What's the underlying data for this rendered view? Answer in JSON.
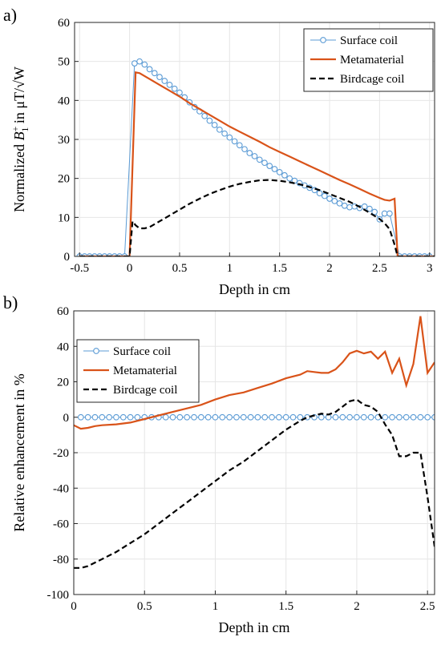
{
  "chart_data": [
    {
      "panel": "a)",
      "type": "line",
      "xlabel": "Depth in cm",
      "ylabel_prefix": "Normalized ",
      "ylabel_symbol": "B",
      "ylabel_sup": "+",
      "ylabel_sub": "1",
      "ylabel_suffix": " in μT/√W",
      "xlim": [
        -0.55,
        3.05
      ],
      "ylim": [
        0,
        60
      ],
      "xticks": [
        -0.5,
        0,
        0.5,
        1,
        1.5,
        2,
        2.5,
        3
      ],
      "xtick_labels": [
        "-0.5",
        "0",
        "0.5",
        "1",
        "1.5",
        "2",
        "2.5",
        "3"
      ],
      "yticks": [
        0,
        10,
        20,
        30,
        40,
        50,
        60
      ],
      "ytick_labels": [
        "0",
        "10",
        "20",
        "30",
        "40",
        "50",
        "60"
      ],
      "grid": true,
      "legend_position": "top-right",
      "series": [
        {
          "name": "Surface coil",
          "style": "circle-markers",
          "color": "#5b9bd5",
          "x": [
            -0.5,
            -0.45,
            -0.4,
            -0.35,
            -0.3,
            -0.25,
            -0.2,
            -0.15,
            -0.1,
            -0.05,
            0.05,
            0.1,
            0.15,
            0.2,
            0.25,
            0.3,
            0.35,
            0.4,
            0.45,
            0.5,
            0.55,
            0.6,
            0.65,
            0.7,
            0.75,
            0.8,
            0.85,
            0.9,
            0.95,
            1.0,
            1.05,
            1.1,
            1.15,
            1.2,
            1.25,
            1.3,
            1.35,
            1.4,
            1.45,
            1.5,
            1.55,
            1.6,
            1.65,
            1.7,
            1.75,
            1.8,
            1.85,
            1.9,
            1.95,
            2.0,
            2.05,
            2.1,
            2.15,
            2.2,
            2.25,
            2.3,
            2.35,
            2.4,
            2.45,
            2.5,
            2.55,
            2.6,
            2.7,
            2.75,
            2.8,
            2.85,
            2.9,
            2.95,
            3.0
          ],
          "y": [
            0,
            0,
            0,
            0,
            0,
            0,
            0,
            0,
            0,
            0,
            49.5,
            50,
            49.2,
            48,
            47,
            46,
            45,
            44,
            43,
            42,
            40.8,
            39.5,
            38.3,
            37.2,
            36,
            34.8,
            33.7,
            32.5,
            31.5,
            30.5,
            29.5,
            28.5,
            27.5,
            26.5,
            25.7,
            24.8,
            24,
            23.2,
            22.4,
            21.6,
            20.8,
            20,
            19.4,
            18.8,
            18.2,
            17.6,
            17,
            16.2,
            15.5,
            14.8,
            14.2,
            13.6,
            13,
            12.6,
            12.8,
            12.4,
            12.8,
            12.2,
            11.4,
            9.5,
            11,
            11,
            0,
            0,
            0,
            0,
            0,
            0,
            0
          ]
        },
        {
          "name": "Metamaterial",
          "style": "solid",
          "color": "#d95319",
          "x": [
            -0.5,
            0.0,
            0.06,
            0.1,
            0.2,
            0.3,
            0.4,
            0.5,
            0.6,
            0.7,
            0.8,
            0.9,
            1.0,
            1.1,
            1.2,
            1.3,
            1.4,
            1.5,
            1.6,
            1.7,
            1.8,
            1.9,
            2.0,
            2.1,
            2.2,
            2.3,
            2.4,
            2.5,
            2.55,
            2.6,
            2.65,
            2.68,
            3.05
          ],
          "y": [
            0,
            0,
            47.2,
            47,
            45.5,
            44,
            42.5,
            41,
            39.3,
            37.8,
            36.3,
            34.8,
            33.3,
            32,
            30.7,
            29.4,
            28,
            26.8,
            25.6,
            24.4,
            23.2,
            22,
            20.8,
            19.6,
            18.5,
            17.3,
            16.1,
            15,
            14.5,
            14.3,
            14.8,
            0,
            0
          ]
        },
        {
          "name": "Birdcage coil",
          "style": "dashed",
          "color": "#000000",
          "x": [
            -0.5,
            0.0,
            0.03,
            0.06,
            0.1,
            0.15,
            0.2,
            0.3,
            0.4,
            0.5,
            0.6,
            0.7,
            0.8,
            0.9,
            1.0,
            1.1,
            1.2,
            1.3,
            1.4,
            1.5,
            1.6,
            1.7,
            1.8,
            1.9,
            2.0,
            2.1,
            2.2,
            2.3,
            2.4,
            2.5,
            2.55,
            2.6,
            2.65,
            2.68,
            3.05
          ],
          "y": [
            0,
            0,
            9,
            8,
            7.2,
            7.2,
            7.5,
            9,
            10.5,
            12,
            13.5,
            14.8,
            16,
            17,
            17.9,
            18.6,
            19.1,
            19.5,
            19.6,
            19.4,
            19,
            18.5,
            17.8,
            17,
            16,
            15,
            14,
            12.7,
            11.2,
            9.6,
            8.5,
            7,
            3,
            0,
            0
          ]
        }
      ]
    },
    {
      "panel": "b)",
      "type": "line",
      "xlabel": "Depth in cm",
      "ylabel": "Relative enhancement in %",
      "xlim": [
        0,
        2.55
      ],
      "ylim": [
        -100,
        60
      ],
      "xticks": [
        0,
        0.5,
        1,
        1.5,
        2,
        2.5
      ],
      "xtick_labels": [
        "0",
        "0.5",
        "1",
        "1.5",
        "2",
        "2.5"
      ],
      "yticks": [
        -100,
        -80,
        -60,
        -40,
        -20,
        0,
        20,
        40,
        60
      ],
      "ytick_labels": [
        "-100",
        "-80",
        "-60",
        "-40",
        "-20",
        "0",
        "20",
        "40",
        "60"
      ],
      "grid": true,
      "legend_position": "top-left",
      "series": [
        {
          "name": "Surface coil",
          "style": "circle-markers",
          "color": "#5b9bd5",
          "x": [
            0.05,
            0.1,
            0.15,
            0.2,
            0.25,
            0.3,
            0.35,
            0.4,
            0.45,
            0.5,
            0.55,
            0.6,
            0.65,
            0.7,
            0.75,
            0.8,
            0.85,
            0.9,
            0.95,
            1.0,
            1.05,
            1.1,
            1.15,
            1.2,
            1.25,
            1.3,
            1.35,
            1.4,
            1.45,
            1.5,
            1.55,
            1.6,
            1.65,
            1.7,
            1.75,
            1.8,
            1.85,
            1.9,
            1.95,
            2.0,
            2.05,
            2.1,
            2.15,
            2.2,
            2.25,
            2.3,
            2.35,
            2.4,
            2.45,
            2.5,
            2.55
          ],
          "y": [
            0,
            0,
            0,
            0,
            0,
            0,
            0,
            0,
            0,
            0,
            0,
            0,
            0,
            0,
            0,
            0,
            0,
            0,
            0,
            0,
            0,
            0,
            0,
            0,
            0,
            0,
            0,
            0,
            0,
            0,
            0,
            0,
            0,
            0,
            0,
            0,
            0,
            0,
            0,
            0,
            0,
            0,
            0,
            0,
            0,
            0,
            0,
            0,
            0,
            0,
            0
          ]
        },
        {
          "name": "Metamaterial",
          "style": "solid",
          "color": "#d95319",
          "x": [
            0,
            0.05,
            0.1,
            0.15,
            0.2,
            0.3,
            0.4,
            0.5,
            0.6,
            0.7,
            0.8,
            0.9,
            1.0,
            1.1,
            1.2,
            1.3,
            1.4,
            1.5,
            1.6,
            1.65,
            1.7,
            1.75,
            1.8,
            1.85,
            1.9,
            1.95,
            2.0,
            2.05,
            2.1,
            2.15,
            2.2,
            2.25,
            2.3,
            2.35,
            2.4,
            2.45,
            2.5,
            2.55
          ],
          "y": [
            -4.5,
            -6.5,
            -6,
            -5,
            -4.5,
            -4,
            -3,
            -1,
            1,
            3,
            5,
            7,
            10,
            12.5,
            14,
            16.5,
            19,
            22,
            24,
            26,
            25.5,
            25,
            25,
            27,
            31,
            36,
            37.5,
            36,
            37,
            33,
            37,
            25,
            33,
            18,
            30,
            57,
            25,
            31
          ]
        },
        {
          "name": "Birdcage coil",
          "style": "dashed",
          "color": "#000000",
          "x": [
            0,
            0.05,
            0.1,
            0.2,
            0.3,
            0.4,
            0.5,
            0.6,
            0.7,
            0.8,
            0.9,
            1.0,
            1.1,
            1.2,
            1.3,
            1.4,
            1.5,
            1.6,
            1.65,
            1.7,
            1.75,
            1.8,
            1.85,
            1.9,
            1.95,
            2.0,
            2.05,
            2.1,
            2.15,
            2.2,
            2.25,
            2.3,
            2.35,
            2.4,
            2.45,
            2.5,
            2.55
          ],
          "y": [
            -85,
            -85,
            -84,
            -80,
            -76,
            -71,
            -66,
            -60,
            -54,
            -48,
            -42,
            -36,
            -30,
            -25,
            -19,
            -13,
            -7,
            -2,
            0,
            1,
            2,
            1.5,
            3,
            6,
            9,
            10,
            7,
            6,
            3,
            -4,
            -10,
            -22,
            -22,
            -20,
            -20,
            -45,
            -73
          ]
        }
      ]
    }
  ]
}
